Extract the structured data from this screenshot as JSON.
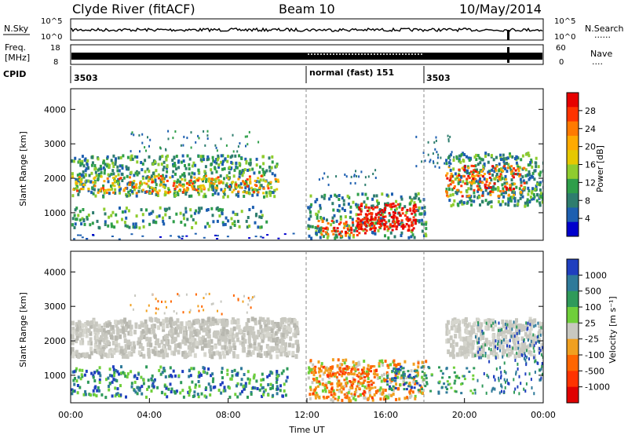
{
  "header": {
    "title": "Clyde River (fitACF)",
    "beam": "Beam 10",
    "date": "10/May/2014"
  },
  "nsky_panel": {
    "left_label": "N.Sky",
    "left_ticks": [
      "10^5",
      "10^0"
    ],
    "right_label": "N.Search",
    "right_ticks": [
      "10^5",
      "10^0"
    ],
    "right_legend_marker": "......"
  },
  "freq_panel": {
    "left_label_1": "Freq.",
    "left_label_2": "[MHz]",
    "left_ticks": [
      "18",
      "8"
    ],
    "right_label": "Nave",
    "right_ticks": [
      "60",
      "0"
    ],
    "right_legend_marker": "...."
  },
  "cpid_panel": {
    "label": "CPID",
    "segments": [
      {
        "start_hour": 0,
        "text": "3503"
      },
      {
        "start_hour": 12,
        "text": "normal (fast) 151"
      },
      {
        "start_hour": 18,
        "text": "3503"
      }
    ]
  },
  "chart_data": [
    {
      "type": "heatmap",
      "panel": "power",
      "ylabel": "Slant Range [km]",
      "ylim": [
        200,
        4600
      ],
      "y_ticks": [
        "1000",
        "2000",
        "3000",
        "4000"
      ],
      "x_ticks_hours": [
        0,
        4,
        8,
        12,
        16,
        20,
        24
      ],
      "colorbar_label": "Power [dB]",
      "colorbar_ticks": [
        "28",
        "24",
        "20",
        "16",
        "12",
        "8",
        "4"
      ],
      "colorbar_colors": [
        "#e60000",
        "#ff3300",
        "#ff7a00",
        "#ffaa00",
        "#e6c800",
        "#8fcc2e",
        "#2f9e4a",
        "#2e7d6e",
        "#1d5fb0",
        "#0000cc"
      ]
    },
    {
      "type": "heatmap",
      "panel": "velocity",
      "ylabel": "Slant Range [km]",
      "ylim": [
        200,
        4600
      ],
      "y_ticks": [
        "1000",
        "2000",
        "3000",
        "4000"
      ],
      "x_ticks": [
        "00:00",
        "04:00",
        "08:00",
        "12:00",
        "16:00",
        "20:00",
        "00:00"
      ],
      "xlabel": "Time UT",
      "colorbar_label": "Velocity [m s⁻¹]",
      "colorbar_ticks": [
        "1000",
        "500",
        "100",
        "25",
        "-25",
        "-100",
        "-500",
        "-1000"
      ],
      "colorbar_colors": [
        "#1f3fbf",
        "#2f7a9a",
        "#2f9a5a",
        "#6fcf3a",
        "#c8c8c0",
        "#f0a020",
        "#ff6600",
        "#ff3300",
        "#e00000"
      ]
    }
  ]
}
